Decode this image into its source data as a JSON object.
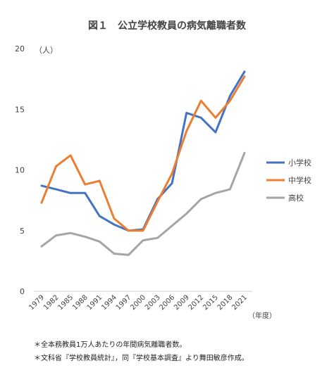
{
  "chart_data": {
    "type": "line",
    "title": "図１　公立学校教員の病気離職者数",
    "ylabel": "（人）",
    "xlabel": "（年度）",
    "categories": [
      "1979",
      "1982",
      "1985",
      "1988",
      "1991",
      "1994",
      "1997",
      "2000",
      "2003",
      "2006",
      "2009",
      "2012",
      "2015",
      "2018",
      "2021"
    ],
    "ylim": [
      0,
      20
    ],
    "yticks": [
      0,
      5,
      10,
      15,
      20
    ],
    "grid": false,
    "legend_position": "right",
    "series": [
      {
        "name": "小学校",
        "color": "#4472C4",
        "values": [
          8.7,
          8.4,
          8.1,
          8.1,
          6.2,
          5.5,
          5.0,
          5.1,
          7.6,
          8.9,
          14.7,
          14.3,
          13.1,
          16.1,
          18.1
        ]
      },
      {
        "name": "中学校",
        "color": "#ED7D31",
        "values": [
          7.3,
          10.3,
          11.2,
          8.8,
          9.1,
          6.0,
          5.0,
          5.0,
          7.4,
          9.7,
          13.2,
          15.7,
          14.3,
          15.7,
          17.7
        ]
      },
      {
        "name": "高校",
        "color": "#A5A5A5",
        "values": [
          3.7,
          4.6,
          4.8,
          4.5,
          4.1,
          3.1,
          3.0,
          4.2,
          4.4,
          5.4,
          6.4,
          7.6,
          8.1,
          8.4,
          11.4
        ]
      }
    ]
  },
  "notes": [
    "＊全本務教員1万人あたりの年間病気離職者数。",
    "＊文科省『学校教員統計』，同『学校基本調査』より舞田敏彦作成。"
  ]
}
